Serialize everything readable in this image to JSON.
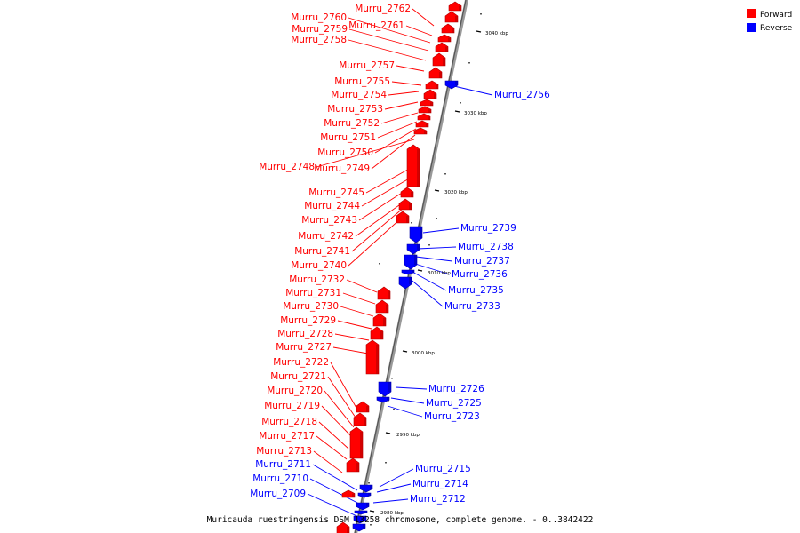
{
  "legend": {
    "forward": {
      "label": "Forward",
      "color": "#ff0000"
    },
    "reverse": {
      "label": "Reverse",
      "color": "#0000ff"
    }
  },
  "title": "Muricauda ruestringensis DSM 13258 chromosome, complete genome. - 0..3842422",
  "ticks": [
    "3040 kbp",
    "3030 kbp",
    "3020 kbp",
    "3010 kbp",
    "3000 kbp",
    "2990 kbp",
    "2980 kbp"
  ],
  "forward_genes": [
    "Murru_2762",
    "Murru_2761",
    "Murru_2760",
    "Murru_2759",
    "Murru_2758",
    "Murru_2757",
    "Murru_2755",
    "Murru_2754",
    "Murru_2753",
    "Murru_2752",
    "Murru_2751",
    "Murru_2750",
    "Murru_2749",
    "Murru_2748",
    "Murru_2745",
    "Murru_2744",
    "Murru_2743",
    "Murru_2742",
    "Murru_2741",
    "Murru_2740",
    "Murru_2732",
    "Murru_2731",
    "Murru_2730",
    "Murru_2729",
    "Murru_2728",
    "Murru_2727",
    "Murru_2722",
    "Murru_2721",
    "Murru_2720",
    "Murru_2719",
    "Murru_2718",
    "Murru_2717",
    "Murru_2713"
  ],
  "reverse_genes": [
    "Murru_2756",
    "Murru_2739",
    "Murru_2738",
    "Murru_2737",
    "Murru_2736",
    "Murru_2735",
    "Murru_2733",
    "Murru_2726",
    "Murru_2725",
    "Murru_2723",
    "Murru_2715",
    "Murru_2714",
    "Murru_2712",
    "Murru_2711",
    "Murru_2710",
    "Murru_2709"
  ]
}
